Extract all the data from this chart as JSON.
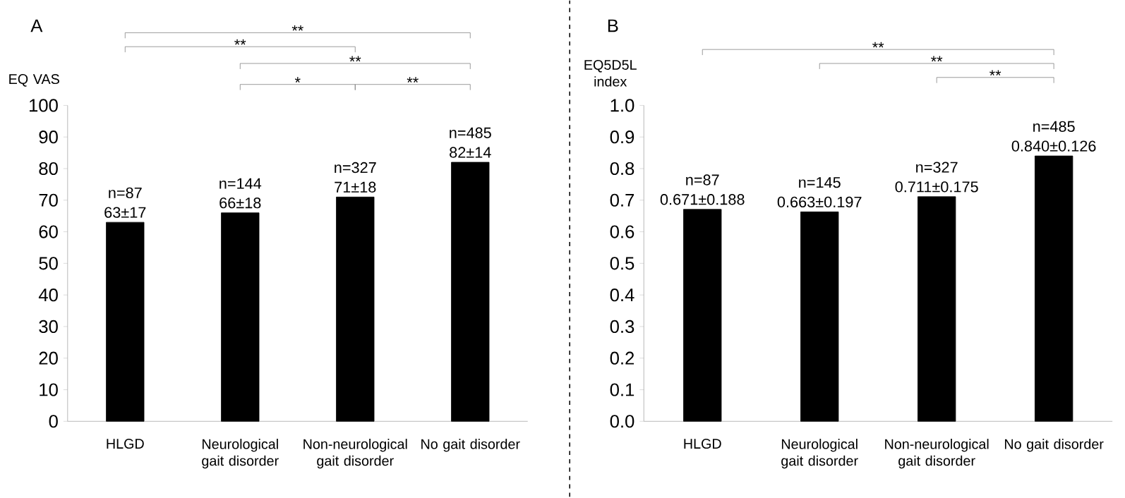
{
  "chart_data": [
    {
      "type": "bar",
      "title": "A",
      "ylabel": "EQ VAS",
      "categories": [
        "HLGD",
        "Neurological gait disorder",
        "Non-neurological gait disorder",
        "No gait disorder"
      ],
      "values": [
        63,
        66,
        71,
        82
      ],
      "color": "#000000",
      "ylim": [
        0,
        100
      ],
      "yticks": [
        0,
        10,
        20,
        30,
        40,
        50,
        60,
        70,
        80,
        90,
        100
      ],
      "value_labels": [
        "63±17",
        "66±18",
        "71±18",
        "82±14"
      ],
      "annotations": [
        "**",
        "**",
        "**",
        "*",
        "**",
        {
          "text": "n=87",
          "x": "HLGD",
          "y": 63
        },
        {
          "text": "n=144",
          "x": "Neurological gait disorder",
          "y": 66
        },
        {
          "text": "n=327",
          "x": "Non-neurological gait disorder",
          "y": 71
        },
        {
          "text": "n=485",
          "x": "No gait disorder",
          "y": 82
        }
      ]
    },
    {
      "type": "bar",
      "title": "B",
      "ylabel": "EQ5D5L index",
      "categories": [
        "HLGD",
        "Neurological gait disorder",
        "Non-neurological gait disorder",
        "No gait disorder"
      ],
      "values": [
        0.671,
        0.663,
        0.711,
        0.84
      ],
      "color": "#000000",
      "ylim": [
        0,
        1
      ],
      "yticks": [
        {
          "value": 0,
          "label": "0.0"
        },
        0.1,
        0.2,
        0.3,
        0.4,
        0.5,
        0.6,
        0.7,
        0.8,
        0.9,
        {
          "value": 1,
          "label": "1.0"
        }
      ],
      "value_labels": [
        "0.671±0.188",
        "0.663±0.197",
        "0.711±0.175",
        "0.840±0.126"
      ],
      "annotations": [
        "**",
        "**",
        "**",
        {
          "text": "n=87",
          "x": "HLGD",
          "y": 0.671
        },
        {
          "text": "n=145",
          "x": "Neurological gait disorder",
          "y": 0.663
        },
        {
          "text": "n=327",
          "x": "Non-neurological gait disorder",
          "y": 0.711
        },
        {
          "text": "n=485",
          "x": "No gait disorder",
          "y": 0.84
        }
      ]
    }
  ]
}
